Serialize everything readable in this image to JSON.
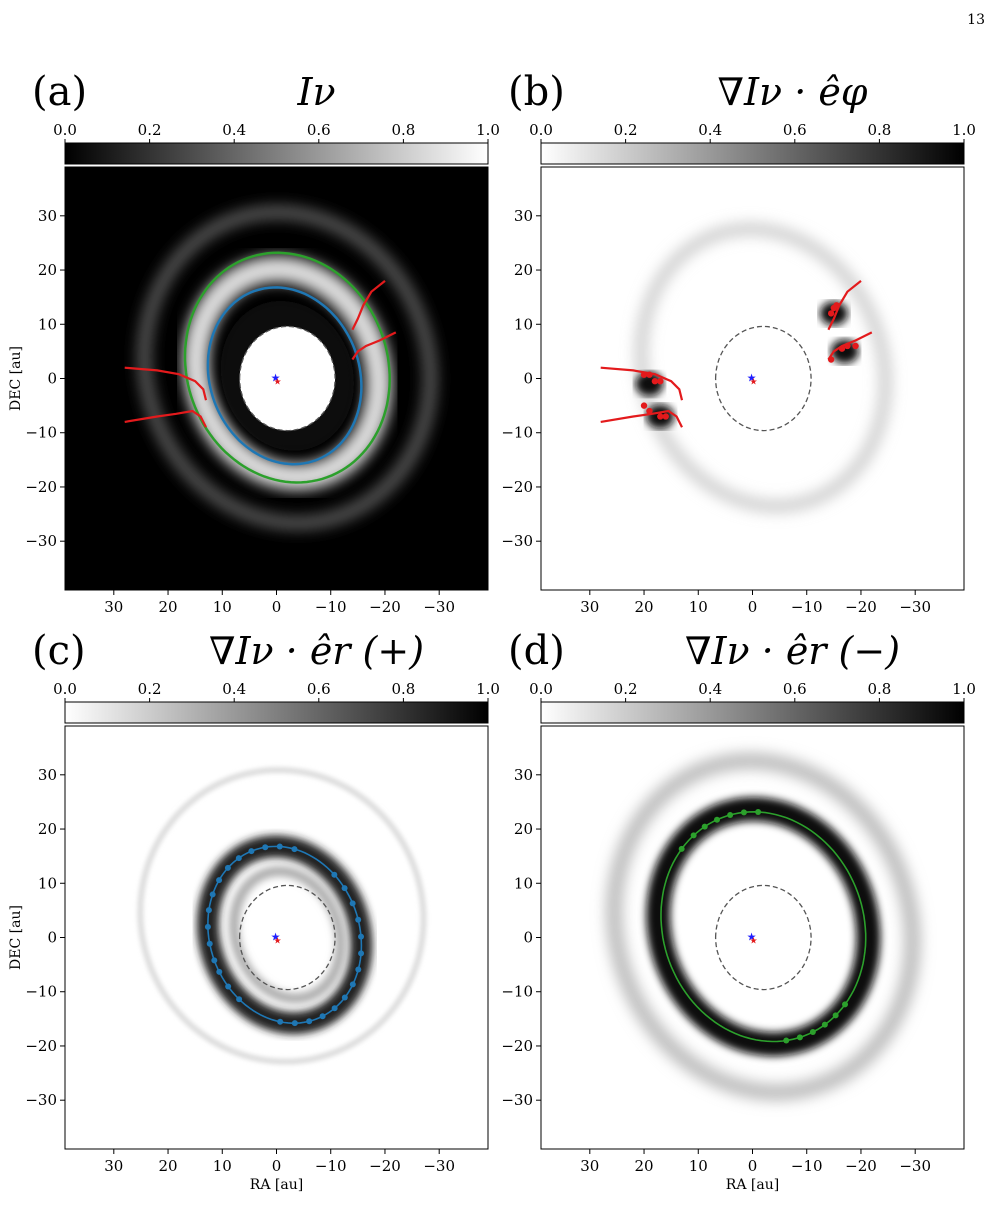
{
  "page_number": "13",
  "colors": {
    "blue_ring": "#1f77b4",
    "green_ring": "#2ca02c",
    "red_spiral": "#e31a1c",
    "dashed_mask": "#555555",
    "star_blue": "#1f1fff",
    "star_red": "#e31a1c"
  },
  "axes": {
    "xlabel": "RA [au]",
    "ylabel": "DEC [au]",
    "xticks": [
      "30",
      "20",
      "10",
      "0",
      "−10",
      "−20",
      "−30"
    ],
    "yticks": [
      "30",
      "20",
      "10",
      "0",
      "−10",
      "−20",
      "−30"
    ],
    "colorbar_ticks": [
      "0.0",
      "0.2",
      "0.4",
      "0.6",
      "0.8",
      "1.0"
    ]
  },
  "chart_data": [
    {
      "type": "heatmap",
      "panel": "(a)",
      "title": "Iν",
      "colormap": "gray (black to white)",
      "colorbar_range": [
        0.0,
        1.0
      ],
      "xlim": [
        39,
        -39
      ],
      "ylim": [
        -39,
        39
      ],
      "xlabel": "",
      "ylabel": "DEC [au]",
      "overlays": [
        "blue ring ellipse",
        "green ring ellipse",
        "red spiral arms",
        "dashed inner mask"
      ]
    },
    {
      "type": "heatmap",
      "panel": "(b)",
      "title": "∇Iν · êφ",
      "colormap": "gray_r (white to black)",
      "colorbar_range": [
        0.0,
        1.0
      ],
      "xlim": [
        39,
        -39
      ],
      "ylim": [
        -39,
        39
      ],
      "xlabel": "",
      "ylabel": "",
      "overlays": [
        "red spiral arms with red points",
        "dashed inner mask"
      ]
    },
    {
      "type": "heatmap",
      "panel": "(c)",
      "title": "∇Iν · êr (+)",
      "colormap": "gray_r (white to black)",
      "colorbar_range": [
        0.0,
        1.0
      ],
      "xlim": [
        39,
        -39
      ],
      "ylim": [
        -39,
        39
      ],
      "xlabel": "RA [au]",
      "ylabel": "DEC [au]",
      "overlays": [
        "blue ring ellipse with blue points",
        "dashed inner mask"
      ]
    },
    {
      "type": "heatmap",
      "panel": "(d)",
      "title": "∇Iν · êr (−)",
      "colormap": "gray_r (white to black)",
      "colorbar_range": [
        0.0,
        1.0
      ],
      "xlim": [
        39,
        -39
      ],
      "ylim": [
        -39,
        39
      ],
      "xlabel": "RA [au]",
      "ylabel": "",
      "overlays": [
        "green ring ellipse with green points",
        "dashed inner mask"
      ]
    }
  ],
  "panels": [
    {
      "label": "(a)",
      "title": "Iν"
    },
    {
      "label": "(b)",
      "title": "∇Iν · êφ"
    },
    {
      "label": "(c)",
      "title": "∇Iν · êr  (+)"
    },
    {
      "label": "(d)",
      "title": "∇Iν · êr  (−)"
    }
  ]
}
